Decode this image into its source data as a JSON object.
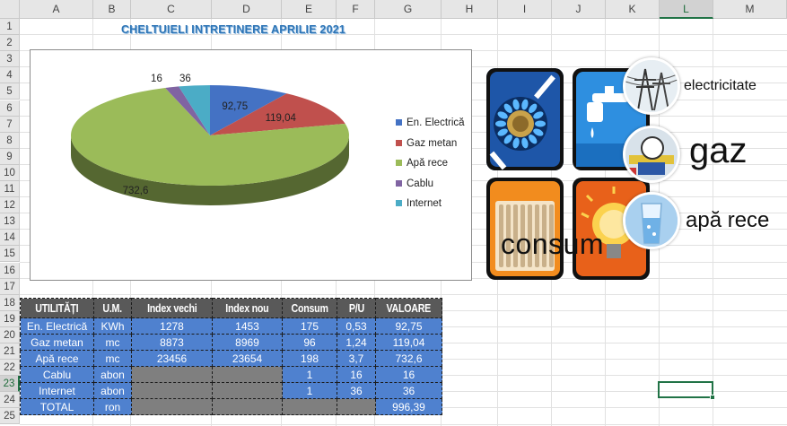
{
  "columns": [
    "A",
    "B",
    "C",
    "D",
    "E",
    "F",
    "G",
    "H",
    "I",
    "J",
    "K",
    "L",
    "M"
  ],
  "rows": [
    "1",
    "2",
    "3",
    "4",
    "5",
    "6",
    "7",
    "8",
    "9",
    "10",
    "11",
    "12",
    "13",
    "14",
    "15",
    "16",
    "17",
    "18",
    "19",
    "20",
    "21",
    "22",
    "23",
    "24",
    "25"
  ],
  "selected_column": "L",
  "selected_row": "23",
  "chart_data": {
    "type": "pie",
    "title": "CHELTUIELI INTRETINERE APRILIE 2021",
    "categories": [
      "En. Electrică",
      "Gaz metan",
      "Apă rece",
      "Cablu",
      "Internet"
    ],
    "values": [
      92.75,
      119.04,
      732.6,
      16,
      36
    ],
    "data_labels": [
      "92,75",
      "119,04",
      "732,6",
      "16",
      "36"
    ],
    "colors": [
      "#4472c4",
      "#c0504d",
      "#9bbb59",
      "#8064a2",
      "#4bacc6"
    ],
    "legend_position": "right",
    "style": "3d"
  },
  "table": {
    "headers": [
      "UTILITĂȚI",
      "U.M.",
      "Index vechi",
      "Index nou",
      "Consum",
      "P/U",
      "VALOARE"
    ],
    "rows": [
      [
        "En. Electrică",
        "KWh",
        "1278",
        "1453",
        "175",
        "0,53",
        "92,75"
      ],
      [
        "Gaz metan",
        "mc",
        "8873",
        "8969",
        "96",
        "1,24",
        "119,04"
      ],
      [
        "Apă rece",
        "mc",
        "23456",
        "23654",
        "198",
        "3,7",
        "732,6"
      ],
      [
        "Cablu",
        "abon",
        "",
        "",
        "1",
        "16",
        "16"
      ],
      [
        "Internet",
        "abon",
        "",
        "",
        "1",
        "36",
        "36"
      ],
      [
        "TOTAL",
        "ron",
        "",
        "",
        "",
        "",
        "996,39"
      ]
    ]
  },
  "infographic": {
    "electricity": "electricitate",
    "gas": "gaz",
    "water": "apă rece",
    "consumption": "consum"
  }
}
